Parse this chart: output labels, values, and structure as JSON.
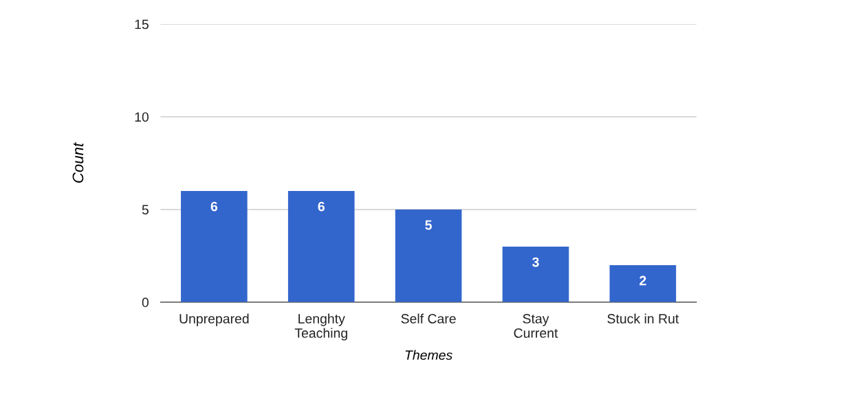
{
  "chart_data": {
    "type": "bar",
    "xlabel": "Themes",
    "ylabel": "Count",
    "categories": [
      "Unprepared",
      "Lenghty\nTeaching",
      "Self Care",
      "Stay\nCurrent",
      "Stuck in Rut"
    ],
    "values": [
      6,
      6,
      5,
      3,
      2
    ],
    "color": "#3366cc",
    "ylim": [
      0,
      15
    ],
    "yticks": [
      0,
      5,
      10,
      15
    ],
    "grid": "y",
    "data_labels": true
  }
}
